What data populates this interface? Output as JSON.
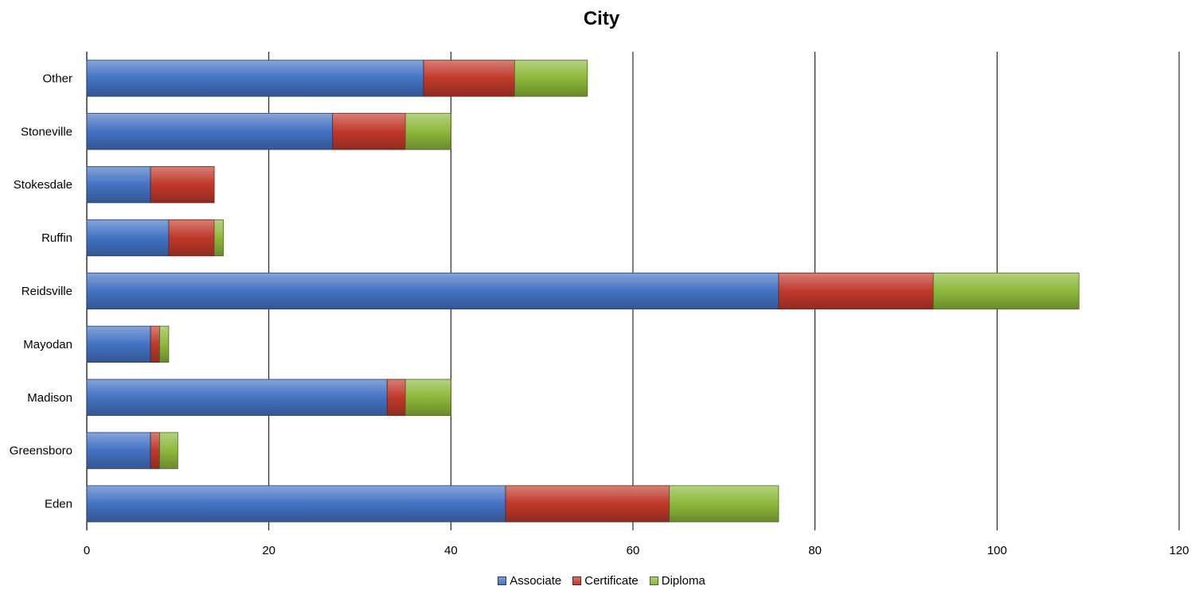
{
  "chart_data": {
    "type": "bar",
    "orientation": "horizontal",
    "stacked": true,
    "title": "City",
    "categories": [
      "Eden",
      "Greensboro",
      "Madison",
      "Mayodan",
      "Reidsville",
      "Ruffin",
      "Stokesdale",
      "Stoneville",
      "Other"
    ],
    "series": [
      {
        "name": "Associate",
        "color": "#4472C4",
        "values": [
          46,
          7,
          33,
          7,
          76,
          9,
          7,
          27,
          37
        ]
      },
      {
        "name": "Certificate",
        "color": "#C0392B",
        "values": [
          18,
          1,
          2,
          1,
          17,
          5,
          7,
          8,
          10
        ]
      },
      {
        "name": "Diploma",
        "color": "#8DB83A",
        "values": [
          12,
          2,
          5,
          1,
          16,
          1,
          0,
          5,
          8
        ]
      }
    ],
    "xlim": [
      0,
      120
    ],
    "xticks": [
      "0",
      "20",
      "40",
      "60",
      "80",
      "100",
      "120"
    ],
    "grid": "vertical",
    "legend": "bottom"
  }
}
